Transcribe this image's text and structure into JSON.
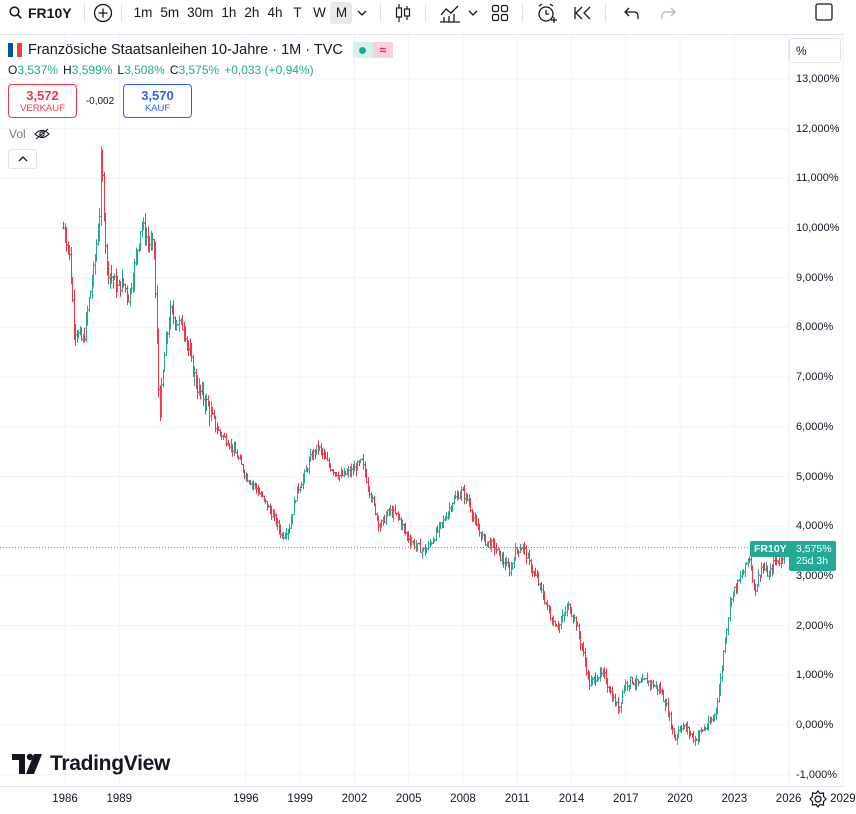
{
  "toolbar": {
    "symbol": "FR10Y",
    "intervals": [
      "1m",
      "5m",
      "30m",
      "1h",
      "2h",
      "4h",
      "T",
      "W",
      "M"
    ],
    "active_interval": "M"
  },
  "legend": {
    "title": "Französiche Staatsanleihen 10-Jahre · 1M · TVC",
    "ohlc": [
      {
        "label": "O",
        "value": "3,537%"
      },
      {
        "label": "H",
        "value": "3,599%"
      },
      {
        "label": "L",
        "value": "3,508%"
      },
      {
        "label": "C",
        "value": "3,575%"
      },
      {
        "label": "",
        "value": "+0,033 (+0,94%)"
      }
    ],
    "sell": {
      "price": "3,572",
      "label": "VERKAUF"
    },
    "spread": "-0,002",
    "buy": {
      "price": "3,570",
      "label": "KAUF"
    },
    "vol_label": "Vol"
  },
  "price_scale": {
    "unit_button": "%",
    "symbol_tag": "FR10Y",
    "last_price": "3,575%",
    "countdown": "25d 3h"
  },
  "logo_text": "TradingView",
  "colors": {
    "up": "#22ab94",
    "down": "#f23645",
    "grid": "#f0f3fa",
    "accent": "#2962ff"
  },
  "chart_data": {
    "type": "line",
    "style": "OHLC bars (monthly)",
    "series": [
      {
        "values": [
          [
            1985.9,
            10.0
          ],
          [
            1986.2,
            9.6
          ],
          [
            1986.5,
            8.0
          ],
          [
            1986.8,
            7.8
          ],
          [
            1987.0,
            7.7
          ],
          [
            1987.3,
            8.5
          ],
          [
            1987.6,
            9.2
          ],
          [
            1987.9,
            10.3
          ],
          [
            1988.0,
            11.5
          ],
          [
            1988.3,
            9.2
          ],
          [
            1988.6,
            9.0
          ],
          [
            1988.9,
            8.8
          ],
          [
            1989.2,
            8.9
          ],
          [
            1989.5,
            8.6
          ],
          [
            1989.9,
            9.4
          ],
          [
            1990.2,
            10.1
          ],
          [
            1990.6,
            9.7
          ],
          [
            1990.9,
            9.6
          ],
          [
            1991.2,
            6.2
          ],
          [
            1991.5,
            7.5
          ],
          [
            1991.8,
            8.3
          ],
          [
            1992.2,
            8.1
          ],
          [
            1992.6,
            8.0
          ],
          [
            1992.9,
            7.4
          ],
          [
            1993.3,
            6.8
          ],
          [
            1993.8,
            6.5
          ],
          [
            1994.1,
            6.2
          ],
          [
            1994.5,
            5.9
          ],
          [
            1995.0,
            5.7
          ],
          [
            1995.5,
            5.4
          ],
          [
            1996.0,
            5.0
          ],
          [
            1996.5,
            4.8
          ],
          [
            1997.0,
            4.5
          ],
          [
            1997.5,
            4.2
          ],
          [
            1998.0,
            3.8
          ],
          [
            1998.4,
            4.0
          ],
          [
            1998.8,
            4.7
          ],
          [
            1999.2,
            5.0
          ],
          [
            1999.6,
            5.4
          ],
          [
            2000.0,
            5.6
          ],
          [
            2000.6,
            5.2
          ],
          [
            2001.2,
            5.0
          ],
          [
            2001.8,
            5.1
          ],
          [
            2002.4,
            5.3
          ],
          [
            2002.9,
            4.6
          ],
          [
            2003.4,
            4.0
          ],
          [
            2003.9,
            4.3
          ],
          [
            2004.4,
            4.2
          ],
          [
            2004.9,
            3.8
          ],
          [
            2005.4,
            3.6
          ],
          [
            2005.9,
            3.5
          ],
          [
            2006.4,
            3.8
          ],
          [
            2006.9,
            4.1
          ],
          [
            2007.4,
            4.5
          ],
          [
            2007.9,
            4.7
          ],
          [
            2008.3,
            4.5
          ],
          [
            2008.7,
            4.0
          ],
          [
            2009.2,
            3.7
          ],
          [
            2009.7,
            3.6
          ],
          [
            2010.2,
            3.3
          ],
          [
            2010.6,
            3.1
          ],
          [
            2010.9,
            3.5
          ],
          [
            2011.3,
            3.6
          ],
          [
            2011.7,
            3.2
          ],
          [
            2012.1,
            2.9
          ],
          [
            2012.5,
            2.5
          ],
          [
            2012.9,
            2.1
          ],
          [
            2013.3,
            2.0
          ],
          [
            2013.8,
            2.4
          ],
          [
            2014.2,
            2.1
          ],
          [
            2014.6,
            1.5
          ],
          [
            2015.0,
            0.8
          ],
          [
            2015.4,
            1.0
          ],
          [
            2015.8,
            1.0
          ],
          [
            2016.2,
            0.6
          ],
          [
            2016.6,
            0.3
          ],
          [
            2016.9,
            0.8
          ],
          [
            2017.3,
            0.9
          ],
          [
            2017.7,
            0.8
          ],
          [
            2018.1,
            0.9
          ],
          [
            2018.5,
            0.8
          ],
          [
            2018.9,
            0.7
          ],
          [
            2019.3,
            0.3
          ],
          [
            2019.7,
            -0.3
          ],
          [
            2020.0,
            0.0
          ],
          [
            2020.4,
            -0.1
          ],
          [
            2020.8,
            -0.3
          ],
          [
            2021.2,
            -0.1
          ],
          [
            2021.6,
            0.0
          ],
          [
            2021.9,
            0.2
          ],
          [
            2022.2,
            0.8
          ],
          [
            2022.5,
            1.8
          ],
          [
            2022.8,
            2.6
          ],
          [
            2023.1,
            2.8
          ],
          [
            2023.5,
            3.1
          ],
          [
            2023.8,
            3.4
          ],
          [
            2024.1,
            2.7
          ],
          [
            2024.5,
            3.2
          ],
          [
            2024.9,
            3.0
          ],
          [
            2025.2,
            3.3
          ],
          [
            2025.5,
            3.3
          ],
          [
            2025.8,
            3.5
          ]
        ]
      }
    ],
    "x_ticks": [
      "1986",
      "1989",
      "1996",
      "1999",
      "2002",
      "2005",
      "2008",
      "2011",
      "2014",
      "2017",
      "2020",
      "2023",
      "2026",
      "2029"
    ],
    "y_ticks": [
      "13,000%",
      "12,000%",
      "11,000%",
      "10,000%",
      "9,000%",
      "8,000%",
      "7,000%",
      "6,000%",
      "5,000%",
      "4,000%",
      "3,000%",
      "2,000%",
      "1,000%",
      "0,000%",
      "-1,000%"
    ],
    "ylim": [
      -1.0,
      13.0
    ],
    "grid": true,
    "legend": "top-left"
  }
}
